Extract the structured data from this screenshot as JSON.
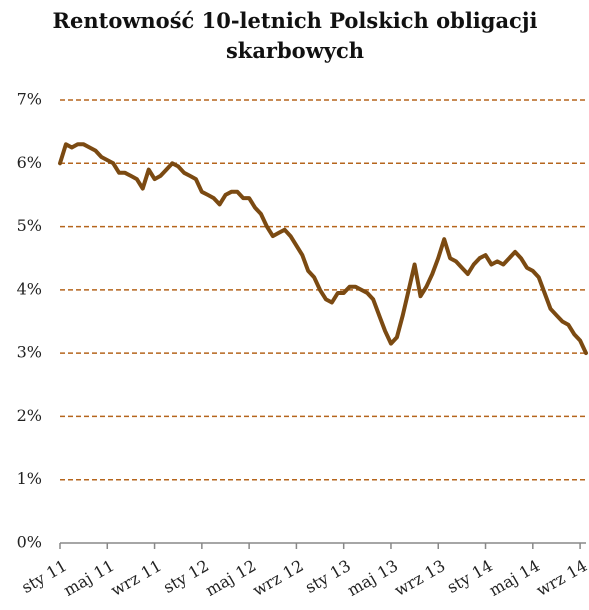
{
  "chart_data": {
    "type": "line",
    "title": "Rentowność 10-letnich Polskich obligacji skarbowych",
    "categories": [
      "sty 11",
      null,
      null,
      null,
      null,
      null,
      null,
      null,
      "maj 11",
      null,
      null,
      null,
      null,
      null,
      null,
      null,
      "wrz 11",
      null,
      null,
      null,
      null,
      null,
      null,
      null,
      "sty 12",
      null,
      null,
      null,
      null,
      null,
      null,
      null,
      "maj 12",
      null,
      null,
      null,
      null,
      null,
      null,
      null,
      "wrz 12",
      null,
      null,
      null,
      null,
      null,
      null,
      null,
      "sty 13",
      null,
      null,
      null,
      null,
      null,
      null,
      null,
      "maj 13",
      null,
      null,
      null,
      null,
      null,
      null,
      null,
      "wrz 13",
      null,
      null,
      null,
      null,
      null,
      null,
      null,
      "sty 14",
      null,
      null,
      null,
      null,
      null,
      null,
      null,
      "maj 14",
      null,
      null,
      null,
      null,
      null,
      null,
      null,
      "wrz 14",
      null
    ],
    "series": [
      {
        "color": "#7b4a12",
        "values": [
          6.0,
          6.3,
          6.25,
          6.3,
          6.3,
          6.25,
          6.2,
          6.1,
          6.05,
          6.0,
          5.85,
          5.85,
          5.8,
          5.75,
          5.6,
          5.9,
          5.75,
          5.8,
          5.9,
          6.0,
          5.95,
          5.85,
          5.8,
          5.75,
          5.55,
          5.5,
          5.45,
          5.35,
          5.5,
          5.55,
          5.55,
          5.45,
          5.45,
          5.3,
          5.2,
          5.0,
          4.85,
          4.9,
          4.95,
          4.85,
          4.7,
          4.55,
          4.3,
          4.2,
          4.0,
          3.85,
          3.8,
          3.95,
          3.95,
          4.05,
          4.05,
          4.0,
          3.95,
          3.85,
          3.6,
          3.35,
          3.15,
          3.25,
          3.6,
          4.0,
          4.4,
          3.9,
          4.05,
          4.25,
          4.5,
          4.8,
          4.5,
          4.45,
          4.35,
          4.25,
          4.4,
          4.5,
          4.55,
          4.4,
          4.45,
          4.4,
          4.5,
          4.6,
          4.5,
          4.35,
          4.3,
          4.2,
          3.95,
          3.7,
          3.6,
          3.5,
          3.45,
          3.3,
          3.2,
          3.0
        ]
      }
    ],
    "ylim": [
      0,
      7
    ],
    "yticks": [
      {
        "value": 0,
        "label": "0%"
      },
      {
        "value": 1,
        "label": "1%"
      },
      {
        "value": 2,
        "label": "2%"
      },
      {
        "value": 3,
        "label": "3%"
      },
      {
        "value": 4,
        "label": "4%"
      },
      {
        "value": 5,
        "label": "5%"
      },
      {
        "value": 6,
        "label": "6%"
      },
      {
        "value": 7,
        "label": "7%"
      }
    ],
    "grid": true
  }
}
